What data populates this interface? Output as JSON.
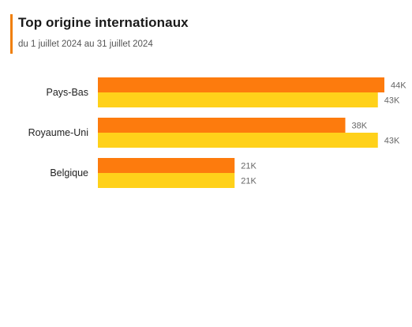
{
  "card": {
    "title": "Top origine internationaux",
    "subtitle": "du 1 juillet 2024 au 31 juillet 2024"
  },
  "colors": {
    "accent": "#f07f09",
    "series_1": "#fd7b0d",
    "series_2": "#ffd11a"
  },
  "chart_data": {
    "type": "bar",
    "orientation": "horizontal",
    "categories": [
      "Pays-Bas",
      "Royaume-Uni",
      "Belgique"
    ],
    "series": [
      {
        "values": [
          44000,
          38000,
          21000
        ],
        "data_labels": [
          "44K",
          "38K",
          "21K"
        ],
        "color": "#fd7b0d"
      },
      {
        "values": [
          43000,
          43000,
          21000
        ],
        "data_labels": [
          "43K",
          "43K",
          "21K"
        ],
        "color": "#ffd11a"
      }
    ],
    "title": "Top origine internationaux",
    "subtitle": "du 1 juillet 2024 au 31 juillet 2024",
    "xlabel": "",
    "ylabel": "",
    "xlim": [
      0,
      44000
    ],
    "grid": false,
    "legend": "none"
  }
}
